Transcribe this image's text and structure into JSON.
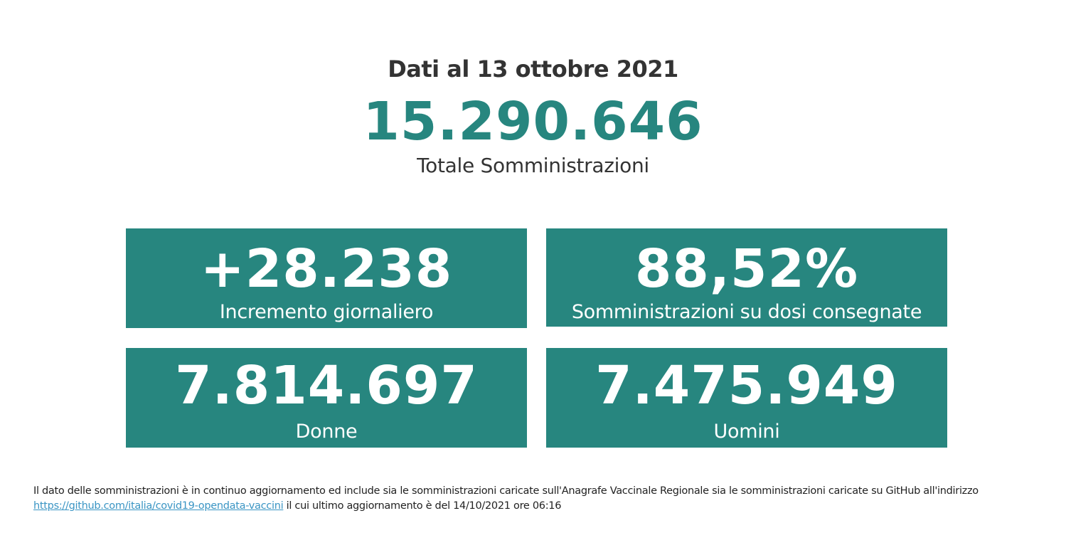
{
  "header": {
    "date_line": "Dati al 13 ottobre 2021",
    "total_value": "15.290.646",
    "total_label": "Totale Somministrazioni"
  },
  "cards": {
    "daily_increase": {
      "value": "+28.238",
      "label": "Incremento giornaliero"
    },
    "delivered_ratio": {
      "value": "88,52%",
      "label": "Somministrazioni su dosi consegnate"
    },
    "women": {
      "value": "7.814.697",
      "label": "Donne"
    },
    "men": {
      "value": "7.475.949",
      "label": "Uomini"
    }
  },
  "footer": {
    "text_before_link": "Il dato delle somministrazioni è in continuo aggiornamento ed include sia le somministrazioni caricate sull'Anagrafe Vaccinale Regionale sia le somministrazioni caricate su GitHub all'indirizzo",
    "link_text": "https://github.com/italia/covid19-opendata-vaccini",
    "text_after_link": "il cui ultimo aggiornamento è del 14/10/2021 ore 06:16"
  },
  "colors": {
    "accent": "#27867f",
    "text": "#333333",
    "link": "#3a95c4"
  }
}
